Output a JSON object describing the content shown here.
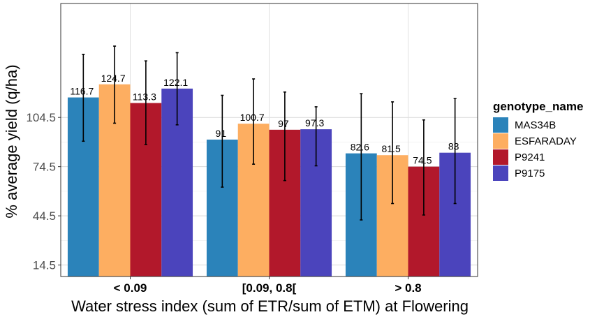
{
  "chart_data": {
    "type": "bar",
    "xlabel": "Water stress index (sum of ETR/sum of ETM)  at  Flowering",
    "ylabel": "% average yield (q/ha)",
    "categories": [
      "< 0.09",
      "[0.09, 0.8[",
      "> 0.8"
    ],
    "category_bold_parts": [
      "0.09",
      "[0.09, 0.8[",
      "0.8"
    ],
    "y_ticks": [
      14.5,
      44.5,
      74.5,
      104.5
    ],
    "y_tick_labels": [
      "14.5",
      "44.5",
      "74.5",
      "104.5"
    ],
    "ylim": [
      7.5,
      174
    ],
    "grid": true,
    "legend": {
      "title": "genotype_name",
      "position": "right"
    },
    "series": [
      {
        "name": "MAS34B",
        "color": "#2b83ba",
        "values": [
          116.7,
          91,
          82.6
        ],
        "labels": [
          "116.7",
          "91",
          "82.6"
        ],
        "err_low": [
          90,
          62,
          42
        ],
        "err_high": [
          143,
          118,
          119
        ]
      },
      {
        "name": "ESFARADAY",
        "color": "#fdae61",
        "values": [
          124.7,
          100.7,
          81.5
        ],
        "labels": [
          "124.7",
          "100.7",
          "81.5"
        ],
        "err_low": [
          101,
          76,
          52
        ],
        "err_high": [
          148,
          128,
          114
        ]
      },
      {
        "name": "P9241",
        "color": "#b2182b",
        "values": [
          113.3,
          97,
          74.5
        ],
        "labels": [
          "113.3",
          "97",
          "74.5"
        ],
        "err_low": [
          88,
          66,
          45
        ],
        "err_high": [
          139,
          120,
          103
        ]
      },
      {
        "name": "P9175",
        "color": "#4b44bc",
        "values": [
          122.1,
          97.3,
          83
        ],
        "labels": [
          "122.1",
          "97.3",
          "83"
        ],
        "err_low": [
          100,
          75,
          52
        ],
        "err_high": [
          144,
          111,
          116
        ]
      }
    ]
  }
}
